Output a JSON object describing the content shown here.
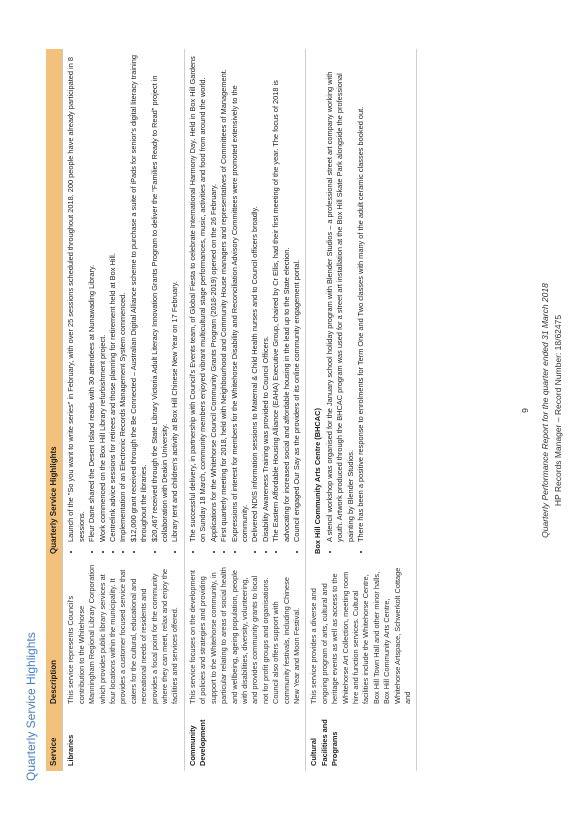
{
  "page": {
    "section_title": "Quarterly Service Highlights",
    "page_number": "9",
    "footer_line1": "Quarterly Performance Report for the quarter ended 31 March 2018",
    "footer_line2": "HP Records Manager – Record Number: 18/62475"
  },
  "table": {
    "headers": {
      "service": "Service",
      "description": "Description",
      "highlights": "Quarterly Service Highlights"
    },
    "rows": [
      {
        "service": "Libraries",
        "description": "This service represents Council's contribution to the Whitehorse Manningham Regional Library Corporation which provides public library services at four locations within the municipality. It provides a customer focused service that caters for the cultural, educational and recreational needs of residents and provides a focal point for the community where they can meet, relax and enjoy the facilities and services offered.",
        "highlights": [
          "Launch of the \"So you want to write series\" in February, with over 25 sessions scheduled throughout 2018. 200 people have already participated in 8 sessions.",
          "Fleur Dane shared the Desert Island reads with 30 attendees at Nunawading Library.",
          "Work commenced on the Box Hill Library refurbishment project.",
          "Centrelink advice sessions for retirees and those planning for retirement held at Box Hill.",
          "Implementation of an Electronic Records Management System commenced.",
          "$12,000 grant received through the Be Connected – Australian Digital Alliance scheme to purchase a suite of iPads for senior's digital literacy training throughout the libraries.",
          "$20,467 received through the State Library Victoria Adult Literacy Innovation Grants Program to deliver the \"Families Ready to Read\" project in collaboration with Deakin University.",
          "Library tent and children's activity at Box Hill Chinese New Year on 17 February."
        ]
      },
      {
        "service": "Community Development",
        "description": "This service focuses on the development of policies and strategies and providing support to the Whitehorse community, in particular relating to areas of social health and wellbeing, ageing population, people with disabilities, diversity, volunteering, and provides community grants to local not for profit groups and organisations. Council also offers support with community festivals, including Chinese New Year and Moon Festival.",
        "highlights": [
          "The successful delivery, in partnership with Council's Events team, of Global Fiesta to celebrate International Harmony Day. Held in Box Hill Gardens on Sunday 18 March, community members enjoyed vibrant multicultural stage performances, music, activities and food from around the world.",
          "Applications for the Whitehorse Council Community Grants Program (2018-2019) opened on the 26 February.",
          "First quarterly meeting for 2018, held with Neighbourhood and Community House managers and representatives of Committees of Management.",
          "Expressions of interest for members for the Whitehorse Disability and Reconciliation Advisory Committees were promoted extensively to the community.",
          "Delivered NDIS information sessions to Maternal & Child Health nurses and to Council officers broadly.",
          "Disability Awareness Training was provided to Council Officers.",
          "The Eastern Affordable Housing Alliance (EAHA) Executive Group, chaired by Cr Ellis, had their first meeting of the year. The focus of 2018 is advocating for increased social and affordable housing in the lead up to the State election.",
          "Council engaged Our Say as the providers of its online community engagement portal."
        ]
      },
      {
        "service": "Cultural Facilities and Programs",
        "description": "This service provides a diverse and ongoing program of arts, cultural and heritage events as well as access to the Whitehorse Art Collection, meeting room hire and function services. Cultural facilities include the Whitehorse Centre, Box Hill Town Hall and other minor halls, Box Hill Community Arts Centre, Whitehorse Artspace, Schwerkolt Cottage and",
        "highlights_heading": "Box Hill Community Arts Centre (BHCAC)",
        "highlights": [
          "A stencil workshop was organised for the January school holiday program with Blender Studios – a professional street art company working with youth.  Artwork produced through the BHCAC program was used for a street art installation at the Box Hill Skate Park alongside the professional painting by Blender Studios.",
          "There has been a positive response to enrolments for Term One and Two classes with many of the adult ceramic classes booked out."
        ]
      }
    ]
  }
}
